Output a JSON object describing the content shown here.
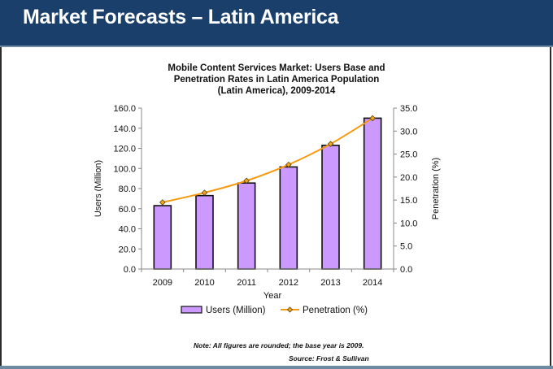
{
  "header": {
    "title": "Market Forecasts – Latin America"
  },
  "colors": {
    "header_bg": "#1a3f6b",
    "bar_fill": "#cc99ff",
    "bar_stroke": "#111111",
    "line": "#f59a10",
    "marker_fill": "#f5a623"
  },
  "chart_data": {
    "type": "bar",
    "title": "Mobile Content Services Market: Users Base and Penetration Rates in Latin America Population (Latin America), 2009-2014",
    "title_lines": [
      "Mobile Content Services Market: Users Base and",
      "Penetration Rates in Latin America Population",
      "(Latin America), 2009-2014"
    ],
    "xlabel": "Year",
    "ylabel": "Users (Million)",
    "y2label": "Penetration (%)",
    "categories": [
      "2009",
      "2010",
      "2011",
      "2012",
      "2013",
      "2014"
    ],
    "ylim": [
      0,
      160
    ],
    "y_ticks": [
      "0.0",
      "20.0",
      "40.0",
      "60.0",
      "80.0",
      "100.0",
      "120.0",
      "140.0",
      "160.0"
    ],
    "y2lim": [
      0,
      35
    ],
    "y2_ticks": [
      "0.0",
      "5.0",
      "10.0",
      "15.0",
      "20.0",
      "25.0",
      "30.0",
      "35.0"
    ],
    "grid": false,
    "legend_position": "bottom",
    "series": [
      {
        "name": "Users (Million)",
        "type": "bar",
        "axis": "left",
        "values": [
          63.0,
          73.0,
          85.5,
          101.5,
          123.0,
          150.0
        ]
      },
      {
        "name": "Penetration (%)",
        "type": "line",
        "axis": "right",
        "values": [
          14.5,
          16.6,
          19.2,
          22.7,
          27.2,
          32.8
        ]
      }
    ]
  },
  "notes": {
    "note": "Note: All figures are rounded; the base year is 2009.",
    "source": "Source: Frost & Sullivan"
  }
}
